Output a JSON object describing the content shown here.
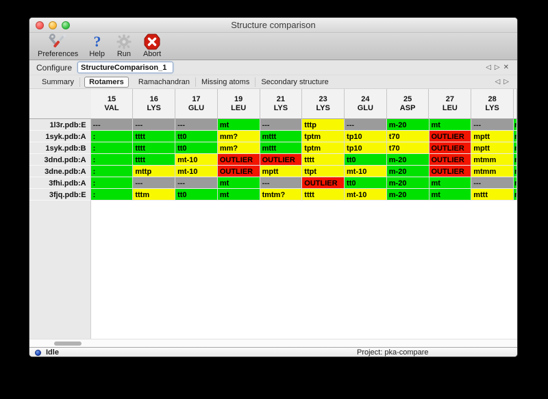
{
  "window": {
    "title": "Structure comparison"
  },
  "toolbar": {
    "buttons": [
      {
        "label": "Preferences",
        "icon": "tools-icon"
      },
      {
        "label": "Help",
        "icon": "help-question-icon"
      },
      {
        "label": "Run",
        "icon": "gear-icon"
      },
      {
        "label": "Abort",
        "icon": "abort-octagon-icon"
      }
    ]
  },
  "configure": {
    "label": "Configure",
    "value": "StructureComparison_1",
    "nav": {
      "prev": "◁",
      "next": "▷",
      "close": "✕"
    }
  },
  "tabs": {
    "items": [
      "Summary",
      "Rotamers",
      "Ramachandran",
      "Missing atoms",
      "Secondary structure"
    ],
    "active": "Rotamers",
    "nav": {
      "prev": "◁",
      "next": "▷"
    }
  },
  "colors": {
    "green": "#00e100",
    "yellow": "#f8f800",
    "red": "#f21500",
    "gray": "#9b9b9b"
  },
  "table": {
    "columns": [
      {
        "num": "15",
        "res": "VAL"
      },
      {
        "num": "16",
        "res": "LYS"
      },
      {
        "num": "17",
        "res": "GLU"
      },
      {
        "num": "19",
        "res": "LEU"
      },
      {
        "num": "21",
        "res": "LYS"
      },
      {
        "num": "23",
        "res": "LYS"
      },
      {
        "num": "24",
        "res": "GLU"
      },
      {
        "num": "25",
        "res": "ASP"
      },
      {
        "num": "27",
        "res": "LEU"
      },
      {
        "num": "28",
        "res": "LYS"
      }
    ],
    "rows": [
      {
        "label": "1l3r.pdb:E",
        "cells": [
          {
            "t": "---",
            "c": "gray"
          },
          {
            "t": "---",
            "c": "gray"
          },
          {
            "t": "---",
            "c": "gray"
          },
          {
            "t": "mt",
            "c": "green"
          },
          {
            "t": "---",
            "c": "gray"
          },
          {
            "t": "tttp",
            "c": "yellow"
          },
          {
            "t": "---",
            "c": "gray"
          },
          {
            "t": "m-20",
            "c": "green"
          },
          {
            "t": "mt",
            "c": "green"
          },
          {
            "t": "---",
            "c": "gray"
          }
        ],
        "clipped": {
          "t": "m",
          "c": "green"
        }
      },
      {
        "label": "1syk.pdb:A",
        "cells": [
          {
            "t": ":",
            "c": "green"
          },
          {
            "t": "tttt",
            "c": "green"
          },
          {
            "t": "tt0",
            "c": "green"
          },
          {
            "t": "mm?",
            "c": "yellow"
          },
          {
            "t": "mttt",
            "c": "green"
          },
          {
            "t": "tptm",
            "c": "yellow"
          },
          {
            "t": "tp10",
            "c": "yellow"
          },
          {
            "t": "t70",
            "c": "yellow"
          },
          {
            "t": "OUTLIER",
            "c": "red"
          },
          {
            "t": "mptt",
            "c": "yellow"
          }
        ],
        "clipped": {
          "t": "m",
          "c": "green"
        }
      },
      {
        "label": "1syk.pdb:B",
        "cells": [
          {
            "t": ":",
            "c": "green"
          },
          {
            "t": "tttt",
            "c": "green"
          },
          {
            "t": "tt0",
            "c": "green"
          },
          {
            "t": "mm?",
            "c": "yellow"
          },
          {
            "t": "mttt",
            "c": "green"
          },
          {
            "t": "tptm",
            "c": "yellow"
          },
          {
            "t": "tp10",
            "c": "yellow"
          },
          {
            "t": "t70",
            "c": "yellow"
          },
          {
            "t": "OUTLIER",
            "c": "red"
          },
          {
            "t": "mptt",
            "c": "yellow"
          }
        ],
        "clipped": {
          "t": "m",
          "c": "green"
        }
      },
      {
        "label": "3dnd.pdb:A",
        "cells": [
          {
            "t": ":",
            "c": "green"
          },
          {
            "t": "tttt",
            "c": "green"
          },
          {
            "t": "mt-10",
            "c": "yellow"
          },
          {
            "t": "OUTLIER",
            "c": "red"
          },
          {
            "t": "OUTLIER",
            "c": "red"
          },
          {
            "t": "tttt",
            "c": "yellow"
          },
          {
            "t": "tt0",
            "c": "green"
          },
          {
            "t": "m-20",
            "c": "green"
          },
          {
            "t": "OUTLIER",
            "c": "red"
          },
          {
            "t": "mtmm",
            "c": "yellow"
          }
        ],
        "clipped": {
          "t": "m",
          "c": "green"
        }
      },
      {
        "label": "3dne.pdb:A",
        "cells": [
          {
            "t": ":",
            "c": "green"
          },
          {
            "t": "mttp",
            "c": "yellow"
          },
          {
            "t": "mt-10",
            "c": "yellow"
          },
          {
            "t": "OUTLIER",
            "c": "red"
          },
          {
            "t": "mptt",
            "c": "yellow"
          },
          {
            "t": "ttpt",
            "c": "yellow"
          },
          {
            "t": "mt-10",
            "c": "yellow"
          },
          {
            "t": "m-20",
            "c": "green"
          },
          {
            "t": "OUTLIER",
            "c": "red"
          },
          {
            "t": "mtmm",
            "c": "yellow"
          }
        ],
        "clipped": {
          "t": "m",
          "c": "green"
        }
      },
      {
        "label": "3fhi.pdb:A",
        "cells": [
          {
            "t": ":",
            "c": "green"
          },
          {
            "t": "---",
            "c": "gray"
          },
          {
            "t": "---",
            "c": "gray"
          },
          {
            "t": "mt",
            "c": "green"
          },
          {
            "t": "---",
            "c": "gray"
          },
          {
            "t": "OUTLIER",
            "c": "red"
          },
          {
            "t": "tt0",
            "c": "green"
          },
          {
            "t": "m-20",
            "c": "green"
          },
          {
            "t": "mt",
            "c": "green"
          },
          {
            "t": "---",
            "c": "gray"
          }
        ],
        "clipped": {
          "t": "m",
          "c": "green"
        }
      },
      {
        "label": "3fjq.pdb:E",
        "cells": [
          {
            "t": ":",
            "c": "green"
          },
          {
            "t": "tttm",
            "c": "yellow"
          },
          {
            "t": "tt0",
            "c": "green"
          },
          {
            "t": "mt",
            "c": "green"
          },
          {
            "t": "tmtm?",
            "c": "yellow"
          },
          {
            "t": "tttt",
            "c": "yellow"
          },
          {
            "t": "mt-10",
            "c": "yellow"
          },
          {
            "t": "m-20",
            "c": "green"
          },
          {
            "t": "mt",
            "c": "green"
          },
          {
            "t": "mttt",
            "c": "yellow"
          }
        ],
        "clipped": {
          "t": "m",
          "c": "green"
        }
      }
    ]
  },
  "status_bar": {
    "status": "Idle",
    "project": "Project: pka-compare"
  }
}
